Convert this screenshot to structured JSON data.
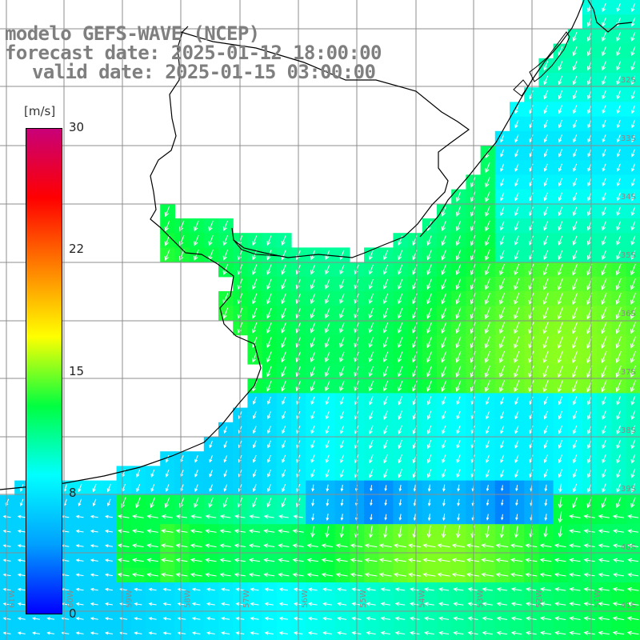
{
  "title": {
    "model": "modelo GEFS-WAVE (NCEP)",
    "forecast_date": "forecast date: 2025-01-12 18:00:00",
    "valid_date": "valid date: 2025-01-15 03:00:00"
  },
  "colorbar": {
    "unit": "[m/s]",
    "ticks": [
      "30",
      "22",
      "15",
      "8",
      "0"
    ],
    "range": [
      0,
      30
    ],
    "colors": [
      "#0000ff",
      "#00a0ff",
      "#00ffff",
      "#00ff40",
      "#ffff00",
      "#ff8000",
      "#ff0000",
      "#c80078"
    ]
  },
  "lat_labels": [
    "32S",
    "33S",
    "34S",
    "35S",
    "36S",
    "37S",
    "38S",
    "39S",
    "40S",
    "41S"
  ],
  "lon_labels": [
    "61W",
    "60W",
    "59W",
    "58W",
    "57W",
    "56W",
    "55W",
    "54W",
    "53W",
    "52W",
    "51W"
  ],
  "colors": {
    "land": "#ffffff",
    "coast": "#000000",
    "grid": "#8c8c8c",
    "arrow": "#ffffff"
  }
}
